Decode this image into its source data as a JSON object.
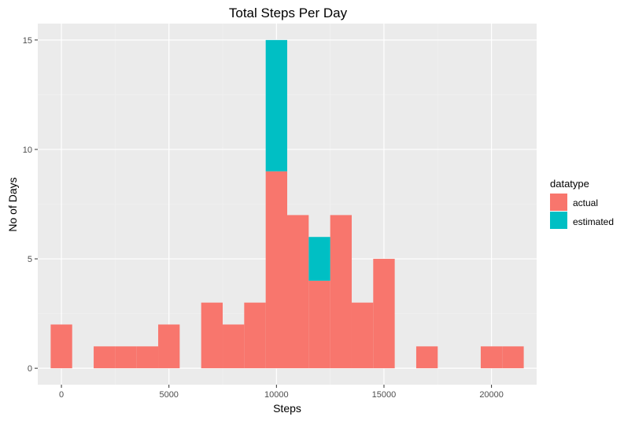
{
  "chart_data": {
    "type": "bar",
    "stacked": true,
    "title": "Total Steps Per Day",
    "xlabel": "Steps",
    "ylabel": "No of Days",
    "bin_width": 1000,
    "xlim": [
      -1100,
      22100
    ],
    "ylim": [
      -0.75,
      15.75
    ],
    "x_ticks": [
      0,
      5000,
      10000,
      15000,
      20000
    ],
    "x_tick_labels": [
      "0",
      "5000",
      "10000",
      "15000",
      "20000"
    ],
    "y_ticks": [
      0,
      5,
      10,
      15
    ],
    "y_tick_labels": [
      "0",
      "5",
      "10",
      "15"
    ],
    "grid": true,
    "background": "#ebebeb",
    "legend": {
      "title": "datatype",
      "position": "right"
    },
    "series": [
      {
        "name": "actual",
        "color": "#f8766d",
        "bins": [
          {
            "x": 0,
            "count": 2
          },
          {
            "x": 2000,
            "count": 1
          },
          {
            "x": 3000,
            "count": 1
          },
          {
            "x": 4000,
            "count": 1
          },
          {
            "x": 5000,
            "count": 2
          },
          {
            "x": 7000,
            "count": 3
          },
          {
            "x": 8000,
            "count": 2
          },
          {
            "x": 9000,
            "count": 3
          },
          {
            "x": 10000,
            "count": 9
          },
          {
            "x": 11000,
            "count": 7
          },
          {
            "x": 12000,
            "count": 4
          },
          {
            "x": 13000,
            "count": 7
          },
          {
            "x": 14000,
            "count": 3
          },
          {
            "x": 15000,
            "count": 5
          },
          {
            "x": 17000,
            "count": 1
          },
          {
            "x": 20000,
            "count": 1
          },
          {
            "x": 21000,
            "count": 1
          }
        ]
      },
      {
        "name": "estimated",
        "color": "#00bfc4",
        "bins": [
          {
            "x": 10000,
            "count": 6
          },
          {
            "x": 12000,
            "count": 2
          }
        ]
      }
    ]
  }
}
